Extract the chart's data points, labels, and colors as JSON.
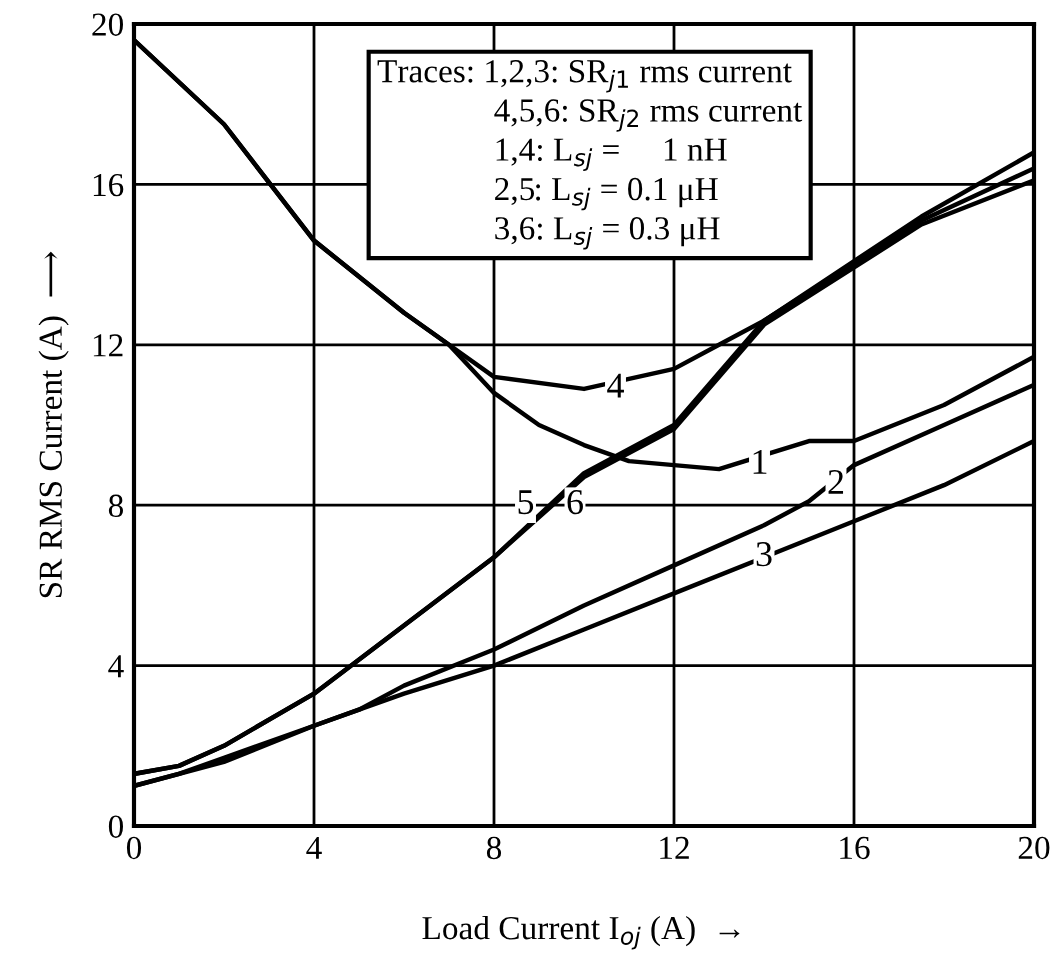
{
  "chart_data": {
    "type": "line",
    "xlabel": "Load Current I$_{oj}$ (A)  →",
    "ylabel": "SR RMS Current (A)  ⟶",
    "xlim": [
      0,
      20
    ],
    "ylim": [
      0,
      20
    ],
    "xticks": [
      0,
      4,
      8,
      12,
      16,
      20
    ],
    "yticks": [
      0,
      4,
      8,
      12,
      16,
      20
    ],
    "grid": true,
    "line_style": "solid",
    "marker": "none",
    "series": [
      {
        "color": "#000000",
        "x": [
          0,
          2,
          4,
          6,
          7,
          8,
          9,
          10,
          11,
          12,
          13,
          15,
          16,
          18,
          20
        ],
        "values": [
          19.6,
          17.5,
          14.6,
          12.8,
          12.0,
          10.8,
          10.0,
          9.5,
          9.1,
          9.0,
          8.9,
          9.6,
          9.6,
          10.5,
          11.7
        ]
      },
      {
        "color": "#000000",
        "x": [
          0,
          1,
          2,
          4,
          5,
          6,
          8,
          10,
          12,
          14,
          15,
          16,
          18,
          20
        ],
        "values": [
          1.0,
          1.3,
          1.7,
          2.5,
          2.9,
          3.5,
          4.4,
          5.5,
          6.5,
          7.5,
          8.1,
          9.0,
          10.0,
          11.0
        ]
      },
      {
        "color": "#000000",
        "x": [
          0,
          2,
          4,
          5,
          6,
          8,
          10,
          12,
          16,
          18,
          20
        ],
        "values": [
          1.0,
          1.6,
          2.5,
          2.9,
          3.3,
          4.0,
          4.9,
          5.8,
          7.6,
          8.5,
          9.6
        ]
      },
      {
        "color": "#000000",
        "x": [
          0,
          2,
          4,
          6,
          7,
          8,
          10,
          12,
          13,
          14,
          17.5,
          20
        ],
        "values": [
          19.6,
          17.5,
          14.6,
          12.8,
          12.0,
          11.2,
          10.9,
          11.4,
          12.0,
          12.6,
          15.2,
          16.8
        ]
      },
      {
        "color": "#000000",
        "x": [
          0,
          1,
          2,
          4,
          6,
          8,
          10,
          12,
          14,
          17.5,
          20
        ],
        "values": [
          1.3,
          1.5,
          2.0,
          3.3,
          5.0,
          6.7,
          8.8,
          10.0,
          12.6,
          15.1,
          16.4
        ]
      },
      {
        "color": "#000000",
        "x": [
          0,
          1,
          2,
          4,
          6,
          8,
          10,
          12,
          14,
          17.5,
          20
        ],
        "values": [
          1.3,
          1.5,
          2.0,
          3.3,
          5.0,
          6.7,
          8.7,
          9.9,
          12.5,
          15.0,
          16.1
        ]
      }
    ],
    "annotations": [
      {
        "text": "1",
        "x": 13.9,
        "y": 9.0
      },
      {
        "text": "2",
        "x": 15.6,
        "y": 8.5
      },
      {
        "text": "3",
        "x": 14.0,
        "y": 6.7
      },
      {
        "text": "4",
        "x": 10.7,
        "y": 10.9
      },
      {
        "text": "5",
        "x": 8.7,
        "y": 8.0
      },
      {
        "text": "6",
        "x": 9.8,
        "y": 8.0
      },
      "Traces: 1,2,3: SR$_{j1}$ rms current\n              4,5,6: SR$_{j2}$ rms current\n              1,4: L$_{sj}$ =     1 nH\n              2,5: L$_{sj}$ = 0.1 μH\n              3,6: L$_{sj}$ = 0.3 μH"
    ]
  }
}
